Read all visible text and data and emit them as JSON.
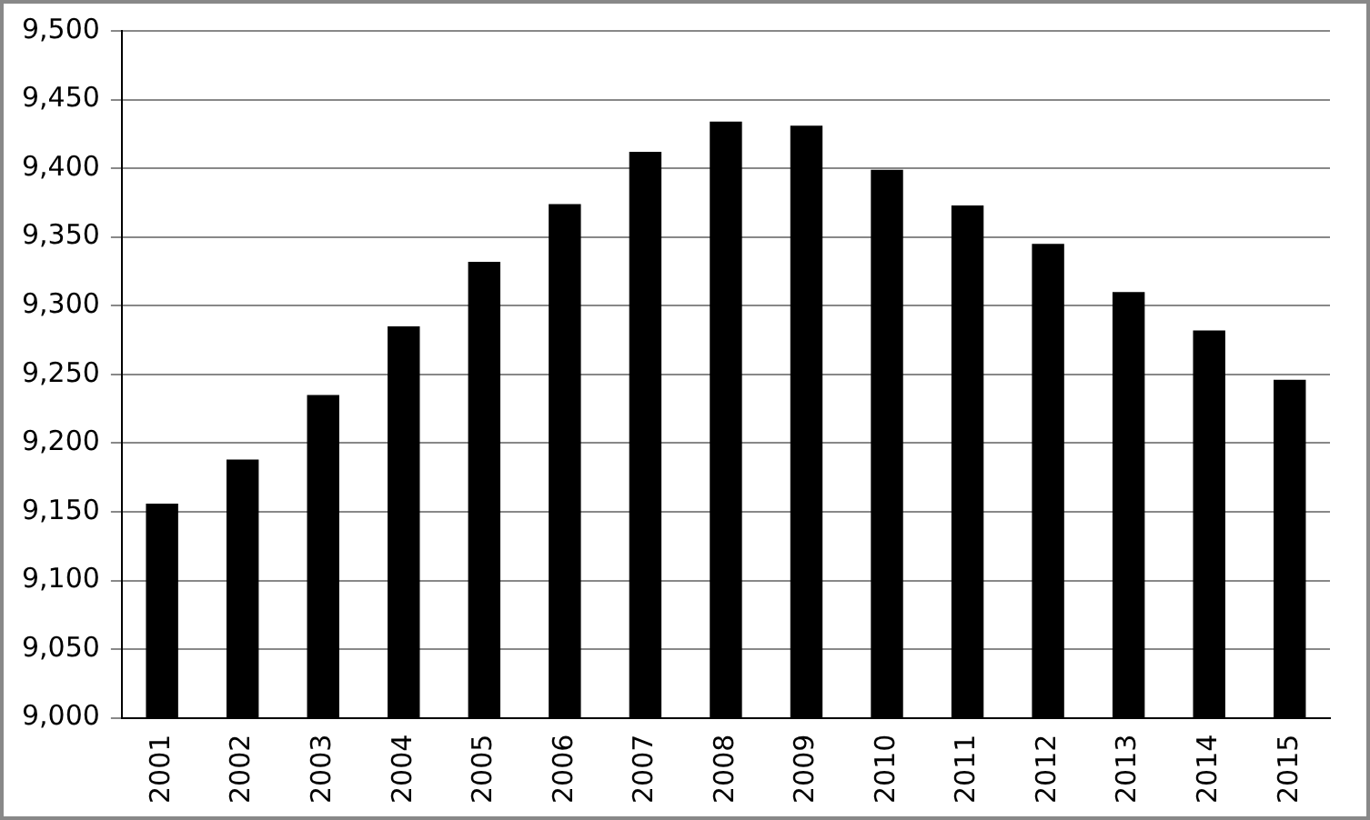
{
  "chart_data": {
    "type": "bar",
    "categories": [
      "2001",
      "2002",
      "2003",
      "2004",
      "2005",
      "2006",
      "2007",
      "2008",
      "2009",
      "2010",
      "2011",
      "2012",
      "2013",
      "2014",
      "2015"
    ],
    "values": [
      9156,
      9188,
      9235,
      9285,
      9332,
      9374,
      9412,
      9434,
      9431,
      9399,
      9373,
      9345,
      9310,
      9282,
      9246
    ],
    "color": "#000000",
    "ylim": [
      9000,
      9500
    ],
    "yticks": [
      {
        "value": 9000,
        "label": "9,000"
      },
      {
        "value": 9050,
        "label": "9,050"
      },
      {
        "value": 9100,
        "label": "9,100"
      },
      {
        "value": 9150,
        "label": "9,150"
      },
      {
        "value": 9200,
        "label": "9,200"
      },
      {
        "value": 9250,
        "label": "9,250"
      },
      {
        "value": 9300,
        "label": "9,300"
      },
      {
        "value": 9350,
        "label": "9,350"
      },
      {
        "value": 9400,
        "label": "9,400"
      },
      {
        "value": 9450,
        "label": "9,450"
      },
      {
        "value": 9500,
        "label": "9,500"
      }
    ],
    "grid": "y"
  }
}
